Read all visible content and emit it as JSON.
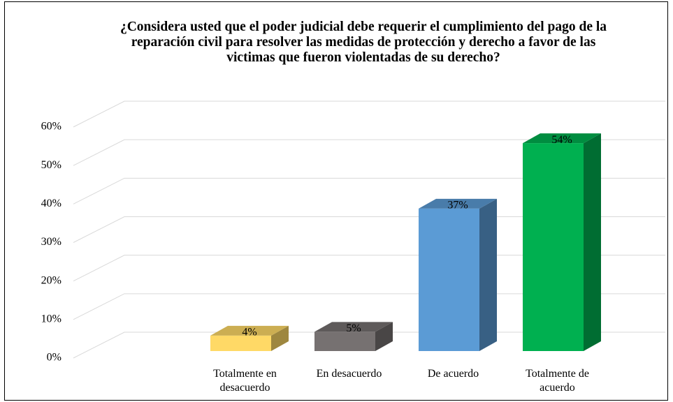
{
  "chart_data": {
    "type": "bar",
    "title": "¿Considera usted que el poder judicial debe requerir el cumplimiento del pago de la reparación civil para resolver las medidas de protección y derecho a favor de las victimas que fueron violentadas de su derecho?",
    "categories": [
      "Totalmente en desacuerdo",
      "En desacuerdo",
      "De acuerdo",
      "Totalmente de acuerdo"
    ],
    "values": [
      4,
      5,
      37,
      54
    ],
    "value_labels": [
      "4%",
      "5%",
      "37%",
      "54%"
    ],
    "colors": [
      "#ffd966",
      "#767171",
      "#5b9bd5",
      "#00b050"
    ],
    "ylim": [
      0,
      60
    ],
    "yticks": [
      {
        "value": 0,
        "label": "0%"
      },
      {
        "value": 10,
        "label": "10%"
      },
      {
        "value": 20,
        "label": "20%"
      },
      {
        "value": 30,
        "label": "30%"
      },
      {
        "value": 40,
        "label": "40%"
      },
      {
        "value": 50,
        "label": "50%"
      },
      {
        "value": 60,
        "label": "60%"
      }
    ],
    "grid": true
  }
}
